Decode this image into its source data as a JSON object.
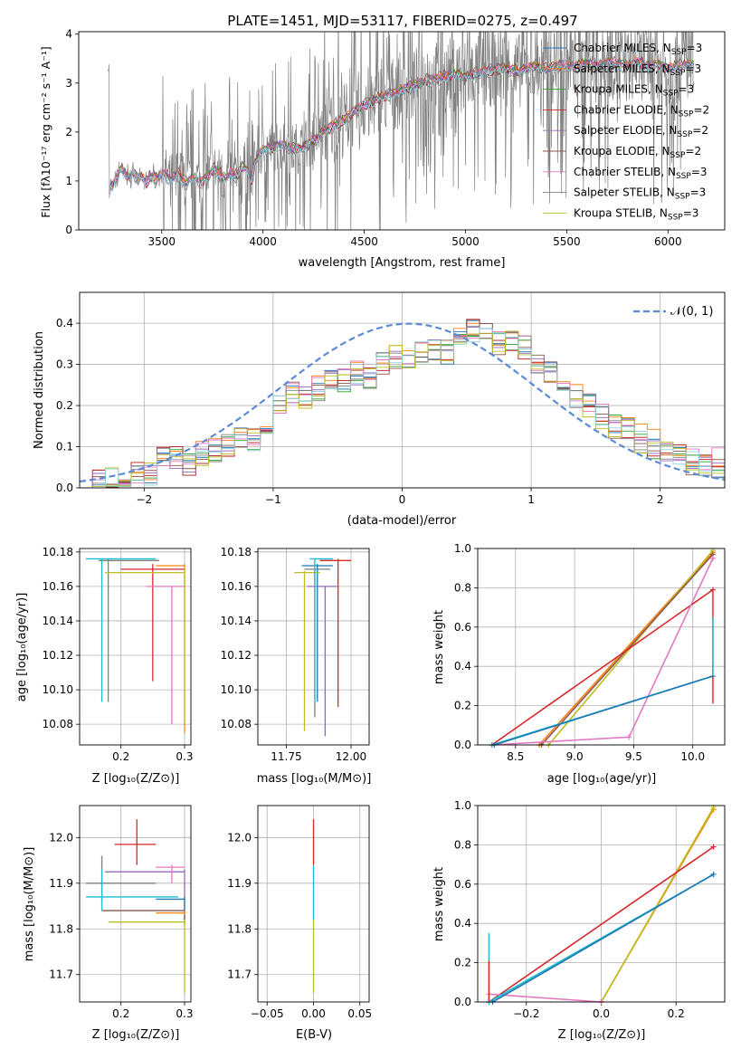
{
  "title": "PLATE=1451, MJD=53117, FIBERID=0275, z=0.497",
  "colors": {
    "chabrier_miles": "#1f77b4",
    "salpeter_miles": "#ff7f0e",
    "kroupa_miles": "#2ca02c",
    "chabrier_elodie": "#d62728",
    "salpeter_elodie": "#9467bd",
    "kroupa_elodie": "#8c564b",
    "chabrier_stelib": "#e377c2",
    "salpeter_stelib": "#7f7f7f",
    "kroupa_stelib": "#bcbd22",
    "chabrier_miles_plot": "#1f9be0",
    "data": "#808080",
    "gauss": "#5b8ad6"
  },
  "panels": {
    "spectrum": {
      "xlabel": "wavelength [Angstrom, rest frame]",
      "ylabel": "Flux [fλ10⁻¹⁷ erg cm⁻² s⁻¹ A⁻¹]",
      "xticks": [
        "3500",
        "4000",
        "4500",
        "5000",
        "5500",
        "6000"
      ],
      "yticks": [
        "0",
        "1",
        "2",
        "3",
        "4"
      ],
      "legend": [
        {
          "label": "Chabrier MILES, N",
          "sub": "SSP",
          "tail": "=3",
          "color": "#1f77b4"
        },
        {
          "label": "Salpeter MILES, N",
          "sub": "SSP",
          "tail": "=3",
          "color": "#ff7f0e"
        },
        {
          "label": "Kroupa MILES, N",
          "sub": "SSP",
          "tail": "=3",
          "color": "#2ca02c"
        },
        {
          "label": "Chabrier ELODIE, N",
          "sub": "SSP",
          "tail": "=2",
          "color": "#d62728"
        },
        {
          "label": "Salpeter ELODIE, N",
          "sub": "SSP",
          "tail": "=2",
          "color": "#9467bd"
        },
        {
          "label": "Kroupa ELODIE, N",
          "sub": "SSP",
          "tail": "=2",
          "color": "#8c564b"
        },
        {
          "label": "Chabrier STELIB, N",
          "sub": "SSP",
          "tail": "=3",
          "color": "#e377c2"
        },
        {
          "label": "Salpeter STELIB, N",
          "sub": "SSP",
          "tail": "=3",
          "color": "#7f7f7f"
        },
        {
          "label": "Kroupa STELIB, N",
          "sub": "SSP",
          "tail": "=3",
          "color": "#bcbd22"
        }
      ]
    },
    "hist": {
      "xlabel": "(data-model)/error",
      "ylabel": "Normed distribution",
      "xticks": [
        "−2",
        "−1",
        "0",
        "1",
        "2"
      ],
      "yticks": [
        "0.0",
        "0.1",
        "0.2",
        "0.3",
        "0.4"
      ],
      "legend": "𝒩(0, 1)"
    },
    "age_z": {
      "xlabel": "Z [log₁₀(Z/Z⊙)]",
      "ylabel": "age  [log₁₀(age/yr)]",
      "xticks": [
        "0.2",
        "0.3"
      ],
      "yticks": [
        "10.08",
        "10.10",
        "10.12",
        "10.14",
        "10.16",
        "10.18"
      ]
    },
    "age_mass": {
      "xlabel": "mass [log₁₀(M/M⊙)]",
      "xticks": [
        "11.75",
        "12.00"
      ],
      "yticks": [
        "10.08",
        "10.10",
        "10.12",
        "10.14",
        "10.16",
        "10.18"
      ]
    },
    "mw_age": {
      "xlabel": "age  [log₁₀(age/yr)]",
      "ylabel": "mass weight",
      "xticks": [
        "8.5",
        "9.0",
        "9.5",
        "10.0"
      ],
      "yticks": [
        "0.0",
        "0.2",
        "0.4",
        "0.6",
        "0.8",
        "1.0"
      ]
    },
    "mass_z": {
      "xlabel": "Z [log₁₀(Z/Z⊙)]",
      "ylabel": "mass [log₁₀(M/M⊙)]",
      "xticks": [
        "0.2",
        "0.3"
      ],
      "yticks": [
        "11.7",
        "11.8",
        "11.9",
        "12.0"
      ]
    },
    "mass_ebv": {
      "xlabel": "E(B-V)",
      "xticks": [
        "−0.05",
        "0.00",
        "0.05"
      ],
      "yticks": [
        "11.7",
        "11.8",
        "11.9",
        "12.0"
      ]
    },
    "mw_z": {
      "xlabel": "Z [log₁₀(Z/Z⊙)]",
      "ylabel": "mass weight",
      "xticks": [
        "−0.2",
        "0.0",
        "0.2"
      ],
      "yticks": [
        "0.0",
        "0.2",
        "0.4",
        "0.6",
        "0.8",
        "1.0"
      ]
    }
  },
  "chart_data": [
    {
      "type": "line",
      "title": "PLATE=1451, MJD=53117, FIBERID=0275, z=0.497",
      "xlabel": "wavelength [Angstrom, rest frame]",
      "ylabel": "Flux [fλ10⁻¹⁷ erg cm⁻² s⁻¹ A⁻¹]",
      "xlim": [
        3090,
        6280
      ],
      "ylim": [
        0,
        4.05
      ],
      "model_x": [
        3240,
        3260,
        3280,
        3300,
        3320,
        3340,
        3360,
        3380,
        3400,
        3420,
        3440,
        3460,
        3480,
        3500,
        3520,
        3540,
        3560,
        3580,
        3600,
        3620,
        3640,
        3660,
        3680,
        3700,
        3720,
        3740,
        3760,
        3780,
        3800,
        3820,
        3840,
        3860,
        3880,
        3900,
        3920,
        3940,
        3960,
        3980,
        4000,
        4050,
        4100,
        4150,
        4200,
        4250,
        4300,
        4350,
        4400,
        4450,
        4500,
        4550,
        4600,
        4650,
        4700,
        4750,
        4800,
        4850,
        4900,
        4950,
        5000,
        5050,
        5100,
        5150,
        5200,
        5250,
        5300,
        5350,
        5400,
        5450,
        5500,
        5550,
        5600,
        5650,
        5700,
        5750,
        5800,
        5850,
        5900,
        5950,
        6000,
        6050,
        6100,
        6130
      ],
      "model_y": [
        0.82,
        0.95,
        1.1,
        1.28,
        1.15,
        1.05,
        1.2,
        1.02,
        1.1,
        0.95,
        1.08,
        1.12,
        1.05,
        1.2,
        1.15,
        1.02,
        1.1,
        1.15,
        1.05,
        0.95,
        1.02,
        1.1,
        1.05,
        0.98,
        1.08,
        1.15,
        1.25,
        1.18,
        1.12,
        1.05,
        1.2,
        1.1,
        1.15,
        1.3,
        1.25,
        0.98,
        1.35,
        1.55,
        1.65,
        1.7,
        1.75,
        1.65,
        1.72,
        1.85,
        2.0,
        2.15,
        2.25,
        2.45,
        2.55,
        2.65,
        2.75,
        2.8,
        2.9,
        2.95,
        3.05,
        3.1,
        3.15,
        3.2,
        3.15,
        3.2,
        3.25,
        3.3,
        3.3,
        3.25,
        3.3,
        3.35,
        3.3,
        3.35,
        3.4,
        3.35,
        3.4,
        3.35,
        3.45,
        3.4,
        3.35,
        3.45,
        3.35,
        3.4,
        3.3,
        3.35,
        3.4,
        3.35
      ],
      "series": [
        {
          "name": "Chabrier MILES, N_SSP=3",
          "offset": 0.0
        },
        {
          "name": "Salpeter MILES, N_SSP=3",
          "offset": 0.02
        },
        {
          "name": "Kroupa MILES, N_SSP=3",
          "offset": 0.01
        },
        {
          "name": "Chabrier ELODIE, N_SSP=2",
          "offset": -0.04
        },
        {
          "name": "Salpeter ELODIE, N_SSP=2",
          "offset": 0.0
        },
        {
          "name": "Kroupa ELODIE, N_SSP=2",
          "offset": 0.05
        },
        {
          "name": "Chabrier STELIB, N_SSP=3",
          "offset": 0.0
        },
        {
          "name": "Salpeter STELIB, N_SSP=3",
          "offset": -0.08
        },
        {
          "name": "Kroupa STELIB, N_SSP=3",
          "offset": -0.05
        }
      ]
    },
    {
      "type": "line",
      "xlabel": "(data-model)/error",
      "ylabel": "Normed distribution",
      "xlim": [
        -2.5,
        2.5
      ],
      "ylim": [
        0,
        0.475
      ],
      "bin_edges": [
        -2.5,
        -2.4,
        -2.3,
        -2.2,
        -2.1,
        -2.0,
        -1.9,
        -1.8,
        -1.7,
        -1.6,
        -1.5,
        -1.4,
        -1.3,
        -1.2,
        -1.1,
        -1.0,
        -0.9,
        -0.8,
        -0.7,
        -0.6,
        -0.5,
        -0.4,
        -0.3,
        -0.2,
        -0.1,
        0.0,
        0.1,
        0.2,
        0.3,
        0.4,
        0.5,
        0.6,
        0.7,
        0.8,
        0.9,
        1.0,
        1.1,
        1.2,
        1.3,
        1.4,
        1.5,
        1.6,
        1.7,
        1.8,
        1.9,
        2.0,
        2.1,
        2.2,
        2.3,
        2.4,
        2.5
      ],
      "hist_values": [
        0.02,
        0.02,
        0.02,
        0.03,
        0.035,
        0.035,
        0.07,
        0.075,
        0.06,
        0.08,
        0.09,
        0.1,
        0.12,
        0.12,
        0.15,
        0.2,
        0.23,
        0.22,
        0.24,
        0.27,
        0.26,
        0.28,
        0.27,
        0.3,
        0.32,
        0.31,
        0.33,
        0.34,
        0.33,
        0.36,
        0.38,
        0.37,
        0.35,
        0.36,
        0.34,
        0.3,
        0.28,
        0.25,
        0.22,
        0.2,
        0.17,
        0.15,
        0.14,
        0.11,
        0.1,
        0.09,
        0.08,
        0.06,
        0.05,
        0.05
      ],
      "gauss_name": "N(0,1)"
    },
    {
      "type": "scatter",
      "name": "age vs Z",
      "xlim": [
        0.135,
        0.31
      ],
      "ylim": [
        10.068,
        10.182
      ],
      "points": [
        {
          "x": 0.18,
          "y": 10.175,
          "xerr": [
            0.165,
            0.26
          ],
          "yerr": [
            10.093,
            10.176
          ],
          "c": "#7f7f7f"
        },
        {
          "x": 0.25,
          "y": 10.17,
          "xerr": [
            0.2,
            0.3
          ],
          "yerr": [
            10.105,
            10.173
          ],
          "c": "#d62728"
        },
        {
          "x": 0.3,
          "y": 10.172,
          "xerr": [
            0.255,
            0.3
          ],
          "yerr": [
            10.075,
            10.173
          ],
          "c": "#ff7f0e"
        },
        {
          "x": 0.3,
          "y": 10.168,
          "xerr": [
            0.175,
            0.3
          ],
          "yerr": [
            10.08,
            10.17
          ],
          "c": "#bcbd22"
        },
        {
          "x": 0.28,
          "y": 10.16,
          "xerr": [
            0.24,
            0.3
          ],
          "yerr": [
            10.08,
            10.16
          ],
          "c": "#e377c2"
        },
        {
          "x": 0.17,
          "y": 10.176,
          "xerr": [
            0.145,
            0.255
          ],
          "yerr": [
            10.093,
            10.176
          ],
          "c": "#17becf"
        }
      ]
    },
    {
      "type": "scatter",
      "name": "age vs mass",
      "xlim": [
        11.64,
        12.07
      ],
      "ylim": [
        10.068,
        10.182
      ],
      "points": [
        {
          "x": 11.95,
          "y": 10.175,
          "xerr": [
            11.88,
            12.0
          ],
          "yerr": [
            10.09,
            10.176
          ],
          "c": "#d62728"
        },
        {
          "x": 11.86,
          "y": 10.17,
          "xerr": [
            11.82,
            11.92
          ],
          "yerr": [
            10.084,
            10.171
          ],
          "c": "#7f7f7f"
        },
        {
          "x": 11.87,
          "y": 10.172,
          "xerr": [
            11.81,
            11.93
          ],
          "yerr": [
            10.093,
            10.173
          ],
          "c": "#1f77b4"
        },
        {
          "x": 11.9,
          "y": 10.16,
          "xerr": [
            11.83,
            11.95
          ],
          "yerr": [
            10.073,
            10.16
          ],
          "c": "#9467bd"
        },
        {
          "x": 11.82,
          "y": 10.168,
          "xerr": [
            11.78,
            11.88
          ],
          "yerr": [
            10.076,
            10.169
          ],
          "c": "#bcbd22"
        },
        {
          "x": 11.86,
          "y": 10.176,
          "xerr": [
            11.84,
            11.93
          ],
          "yerr": [
            10.093,
            10.176
          ],
          "c": "#17becf"
        }
      ]
    },
    {
      "type": "line",
      "name": "mass weight vs age",
      "xlim": [
        8.18,
        10.27
      ],
      "ylim": [
        0,
        1.0
      ],
      "series": [
        {
          "c": "#ff7f0e",
          "x": [
            8.7,
            10.17
          ],
          "y": [
            0.0,
            0.98
          ]
        },
        {
          "c": "#bcbd22",
          "x": [
            8.78,
            10.17
          ],
          "y": [
            0.0,
            0.99
          ]
        },
        {
          "c": "#8c564b",
          "x": [
            8.72,
            10.17
          ],
          "y": [
            0.0,
            0.97
          ]
        },
        {
          "c": "#d62728",
          "x": [
            8.3,
            10.17
          ],
          "y": [
            0.0,
            0.79
          ]
        },
        {
          "c": "#e377c2",
          "x": [
            8.3,
            9.46,
            10.17
          ],
          "y": [
            0.0,
            0.04,
            0.95
          ]
        },
        {
          "c": "#17becf",
          "x": [
            8.3,
            10.17
          ],
          "y": [
            0.0,
            0.35
          ]
        },
        {
          "c": "#1f77b4",
          "x": [
            8.32,
            10.17
          ],
          "y": [
            0.0,
            0.35
          ]
        }
      ]
    },
    {
      "type": "scatter",
      "name": "mass vs Z",
      "xlim": [
        0.135,
        0.31
      ],
      "ylim": [
        11.64,
        12.07
      ],
      "points": [
        {
          "x": 0.225,
          "y": 11.985,
          "xerr": [
            0.19,
            0.255
          ],
          "yerr": [
            11.94,
            12.04
          ],
          "c": "#d62728"
        },
        {
          "x": 0.17,
          "y": 11.9,
          "xerr": [
            0.145,
            0.255
          ],
          "yerr": [
            11.86,
            11.96
          ],
          "c": "#7f7f7f"
        },
        {
          "x": 0.3,
          "y": 11.925,
          "xerr": [
            0.175,
            0.3
          ],
          "yerr": [
            11.82,
            11.93
          ],
          "c": "#9467bd"
        },
        {
          "x": 0.28,
          "y": 11.935,
          "xerr": [
            0.255,
            0.3
          ],
          "yerr": [
            11.9,
            11.94
          ],
          "c": "#e377c2"
        },
        {
          "x": 0.17,
          "y": 11.87,
          "xerr": [
            0.145,
            0.29
          ],
          "yerr": [
            11.84,
            11.93
          ],
          "c": "#17becf"
        },
        {
          "x": 0.3,
          "y": 11.865,
          "xerr": [
            0.255,
            0.3
          ],
          "yerr": [
            11.84,
            11.87
          ],
          "c": "#1f77b4"
        },
        {
          "x": 0.3,
          "y": 11.84,
          "xerr": [
            0.17,
            0.3
          ],
          "yerr": [
            11.81,
            11.84
          ],
          "c": "#8c564b"
        },
        {
          "x": 0.3,
          "y": 11.835,
          "xerr": [
            0.255,
            0.3
          ],
          "yerr": [
            11.83,
            11.84
          ],
          "c": "#ff7f0e"
        },
        {
          "x": 0.3,
          "y": 11.815,
          "xerr": [
            0.18,
            0.3
          ],
          "yerr": [
            11.66,
            11.82
          ],
          "c": "#bcbd22"
        }
      ]
    },
    {
      "type": "scatter",
      "name": "mass vs E(B-V)",
      "xlim": [
        -0.06,
        0.06
      ],
      "ylim": [
        11.64,
        12.07
      ],
      "points": [
        {
          "x": 0.0,
          "y": 11.985,
          "yerr": [
            11.94,
            12.04
          ],
          "c": "#d62728"
        },
        {
          "x": 0.0,
          "y": 11.88,
          "yerr": [
            11.82,
            11.94
          ],
          "c": "#17becf"
        },
        {
          "x": 0.0,
          "y": 11.8,
          "yerr": [
            11.66,
            11.82
          ],
          "c": "#bcbd22"
        }
      ]
    },
    {
      "type": "line",
      "name": "mass weight vs Z",
      "xlim": [
        -0.33,
        0.33
      ],
      "ylim": [
        0,
        1.0
      ],
      "series": [
        {
          "c": "#ff7f0e",
          "x": [
            0.0,
            0.3
          ],
          "y": [
            0.0,
            0.98
          ]
        },
        {
          "c": "#bcbd22",
          "x": [
            0.0,
            0.3
          ],
          "y": [
            0.0,
            0.99
          ]
        },
        {
          "c": "#d62728",
          "x": [
            -0.3,
            0.3
          ],
          "y": [
            0.0,
            0.79
          ]
        },
        {
          "c": "#e377c2",
          "x": [
            -0.3,
            0.0
          ],
          "y": [
            0.04,
            0.0
          ]
        },
        {
          "c": "#17becf",
          "x": [
            -0.3,
            0.3
          ],
          "y": [
            0.0,
            0.65
          ]
        },
        {
          "c": "#1f77b4",
          "x": [
            -0.29,
            0.3
          ],
          "y": [
            0.0,
            0.65
          ]
        }
      ]
    }
  ]
}
